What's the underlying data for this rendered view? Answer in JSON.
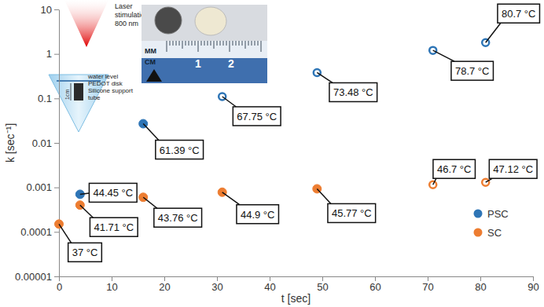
{
  "chart_data": {
    "type": "scatter",
    "x_label": "t [sec]",
    "y_label": "k [sec⁻¹]",
    "log": "y",
    "grid": false,
    "legend": "lower right",
    "xlim": [
      0,
      90
    ],
    "xticks": [
      0,
      10,
      20,
      30,
      40,
      50,
      60,
      70,
      80,
      90
    ],
    "ylim": [
      1e-05,
      10
    ],
    "yticks": [
      1e-05,
      0.0001,
      0.001,
      0.01,
      0.1,
      1,
      10
    ],
    "series": [
      {
        "name": "PSC",
        "color": "#2e75b6",
        "marker": "circle",
        "x": [
          4,
          16,
          31,
          49,
          71,
          81
        ],
        "values": [
          0.0007,
          0.027,
          0.11,
          0.38,
          1.2,
          1.8
        ],
        "markers": [
          "circle",
          "circle",
          "circle-open",
          "circle-open",
          "circle-open",
          "circle-open"
        ],
        "labels": [
          "44.45 °C",
          "61.39 °C",
          "67.75 °C",
          "73.48 °C",
          "78.7 °C",
          "80.7 °C"
        ]
      },
      {
        "name": "SC",
        "color": "#ed7d31",
        "marker": "circle",
        "x": [
          0,
          4,
          16,
          31,
          49,
          71,
          81
        ],
        "values": [
          0.00015,
          0.0004,
          0.0006,
          0.00078,
          0.00093,
          0.00115,
          0.0013
        ],
        "markers": [
          "circle",
          "circle",
          "circle",
          "circle",
          "circle",
          "circle-open",
          "circle-open"
        ],
        "labels": [
          "37 °C",
          "41.71 °C",
          "43.76 °C",
          "44.9 °C",
          "45.77 °C",
          "46.7 °C",
          "47.12 °C"
        ]
      }
    ],
    "inset_texts": {
      "laser": [
        "Laser",
        "stimulation",
        "800 nm"
      ],
      "parts": [
        "water level",
        "PEDOT disk",
        "Silicone support",
        "tube"
      ],
      "scale": "1cm",
      "ruler": [
        "MM",
        "CM",
        "1",
        "2"
      ]
    }
  }
}
